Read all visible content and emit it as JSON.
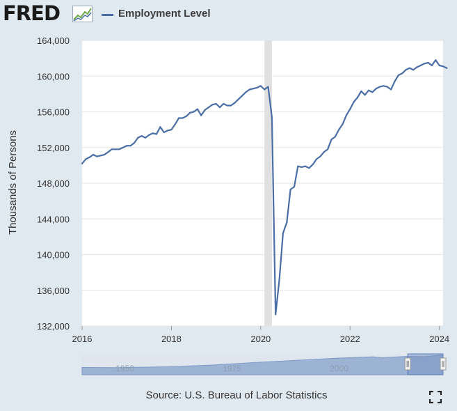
{
  "header": {
    "logo_text": "FRED",
    "logo_icon": "chart-line-icon",
    "legend_label": "Employment Level"
  },
  "colors": {
    "series": "#4b6ea6",
    "background": "#e1e9f0",
    "plot_background": "#ffffff",
    "recession": "#e0e0e0",
    "navigator_fill": "#9db3d4",
    "navigator_window": "#6e8fc4"
  },
  "chart_data": {
    "type": "line",
    "title": "",
    "xlabel": "",
    "ylabel": "Thousands of Persons",
    "xlim": [
      "2016-01",
      "2024-02"
    ],
    "ylim": [
      132000,
      164000
    ],
    "yticks": [
      132000,
      136000,
      140000,
      144000,
      148000,
      152000,
      156000,
      160000,
      164000
    ],
    "ytick_labels": [
      "132,000",
      "136,000",
      "140,000",
      "144,000",
      "148,000",
      "152,000",
      "156,000",
      "160,000",
      "164,000"
    ],
    "xtick_labels": [
      "2016",
      "2018",
      "2020",
      "2022",
      "2024"
    ],
    "grid": true,
    "recession_shading": [
      "2020-02",
      "2020-04"
    ],
    "series": [
      {
        "name": "Employment Level",
        "points": [
          [
            "2016-01",
            150200
          ],
          [
            "2016-02",
            150700
          ],
          [
            "2016-03",
            150900
          ],
          [
            "2016-04",
            151200
          ],
          [
            "2016-05",
            151000
          ],
          [
            "2016-06",
            151100
          ],
          [
            "2016-07",
            151200
          ],
          [
            "2016-08",
            151500
          ],
          [
            "2016-09",
            151800
          ],
          [
            "2016-10",
            151800
          ],
          [
            "2016-11",
            151800
          ],
          [
            "2016-12",
            152000
          ],
          [
            "2017-01",
            152200
          ],
          [
            "2017-02",
            152200
          ],
          [
            "2017-03",
            152500
          ],
          [
            "2017-04",
            153100
          ],
          [
            "2017-05",
            153300
          ],
          [
            "2017-06",
            153100
          ],
          [
            "2017-07",
            153400
          ],
          [
            "2017-08",
            153600
          ],
          [
            "2017-09",
            153500
          ],
          [
            "2017-10",
            154300
          ],
          [
            "2017-11",
            153700
          ],
          [
            "2017-12",
            153900
          ],
          [
            "2018-01",
            154000
          ],
          [
            "2018-02",
            154600
          ],
          [
            "2018-03",
            155300
          ],
          [
            "2018-04",
            155300
          ],
          [
            "2018-05",
            155500
          ],
          [
            "2018-06",
            155900
          ],
          [
            "2018-07",
            156000
          ],
          [
            "2018-08",
            156300
          ],
          [
            "2018-09",
            155600
          ],
          [
            "2018-10",
            156200
          ],
          [
            "2018-11",
            156500
          ],
          [
            "2018-12",
            156800
          ],
          [
            "2019-01",
            156900
          ],
          [
            "2019-02",
            156500
          ],
          [
            "2019-03",
            156900
          ],
          [
            "2019-04",
            156700
          ],
          [
            "2019-05",
            156700
          ],
          [
            "2019-06",
            157000
          ],
          [
            "2019-07",
            157400
          ],
          [
            "2019-08",
            157800
          ],
          [
            "2019-09",
            158200
          ],
          [
            "2019-10",
            158500
          ],
          [
            "2019-11",
            158600
          ],
          [
            "2019-12",
            158700
          ],
          [
            "2020-01",
            158900
          ],
          [
            "2020-02",
            158500
          ],
          [
            "2020-03",
            158800
          ],
          [
            "2020-04",
            155400
          ],
          [
            "2020-05",
            133300
          ],
          [
            "2020-06",
            137200
          ],
          [
            "2020-07",
            142400
          ],
          [
            "2020-08",
            143600
          ],
          [
            "2020-09",
            147300
          ],
          [
            "2020-10",
            147600
          ],
          [
            "2020-11",
            149900
          ],
          [
            "2020-12",
            149800
          ],
          [
            "2021-01",
            149900
          ],
          [
            "2021-02",
            149700
          ],
          [
            "2021-03",
            150100
          ],
          [
            "2021-04",
            150700
          ],
          [
            "2021-05",
            151000
          ],
          [
            "2021-06",
            151500
          ],
          [
            "2021-07",
            151800
          ],
          [
            "2021-08",
            152900
          ],
          [
            "2021-09",
            153200
          ],
          [
            "2021-10",
            154000
          ],
          [
            "2021-11",
            154600
          ],
          [
            "2021-12",
            155600
          ],
          [
            "2022-01",
            156300
          ],
          [
            "2022-02",
            157100
          ],
          [
            "2022-03",
            157600
          ],
          [
            "2022-04",
            158300
          ],
          [
            "2022-05",
            157900
          ],
          [
            "2022-06",
            158400
          ],
          [
            "2022-07",
            158200
          ],
          [
            "2022-08",
            158600
          ],
          [
            "2022-09",
            158800
          ],
          [
            "2022-10",
            158900
          ],
          [
            "2022-11",
            158800
          ],
          [
            "2022-12",
            158500
          ],
          [
            "2023-01",
            159400
          ],
          [
            "2023-02",
            160100
          ],
          [
            "2023-03",
            160300
          ],
          [
            "2023-04",
            160700
          ],
          [
            "2023-05",
            160900
          ],
          [
            "2023-06",
            160700
          ],
          [
            "2023-07",
            161000
          ],
          [
            "2023-08",
            161200
          ],
          [
            "2023-09",
            161400
          ],
          [
            "2023-10",
            161500
          ],
          [
            "2023-11",
            161200
          ],
          [
            "2023-12",
            161800
          ],
          [
            "2024-01",
            161200
          ],
          [
            "2024-02",
            161100
          ],
          [
            "2024-03",
            160900
          ]
        ]
      }
    ]
  },
  "navigator": {
    "labels": [
      "1950",
      "1975",
      "2000"
    ],
    "label_years": [
      1950,
      1975,
      2000
    ],
    "range": [
      1940,
      2024.25
    ],
    "selected_range": [
      2016,
      2024.25
    ],
    "profile_years": [
      1940,
      1948,
      1960,
      1970,
      1980,
      1990,
      2000,
      2008,
      2010,
      2016,
      2020,
      2024
    ],
    "profile_values": [
      60000,
      58000,
      65000,
      79000,
      99000,
      118000,
      136000,
      146000,
      139000,
      150000,
      148000,
      161000
    ]
  },
  "footer": {
    "source": "Source: U.S. Bureau of Labor Statistics",
    "fullscreen_icon": "fullscreen-icon"
  }
}
